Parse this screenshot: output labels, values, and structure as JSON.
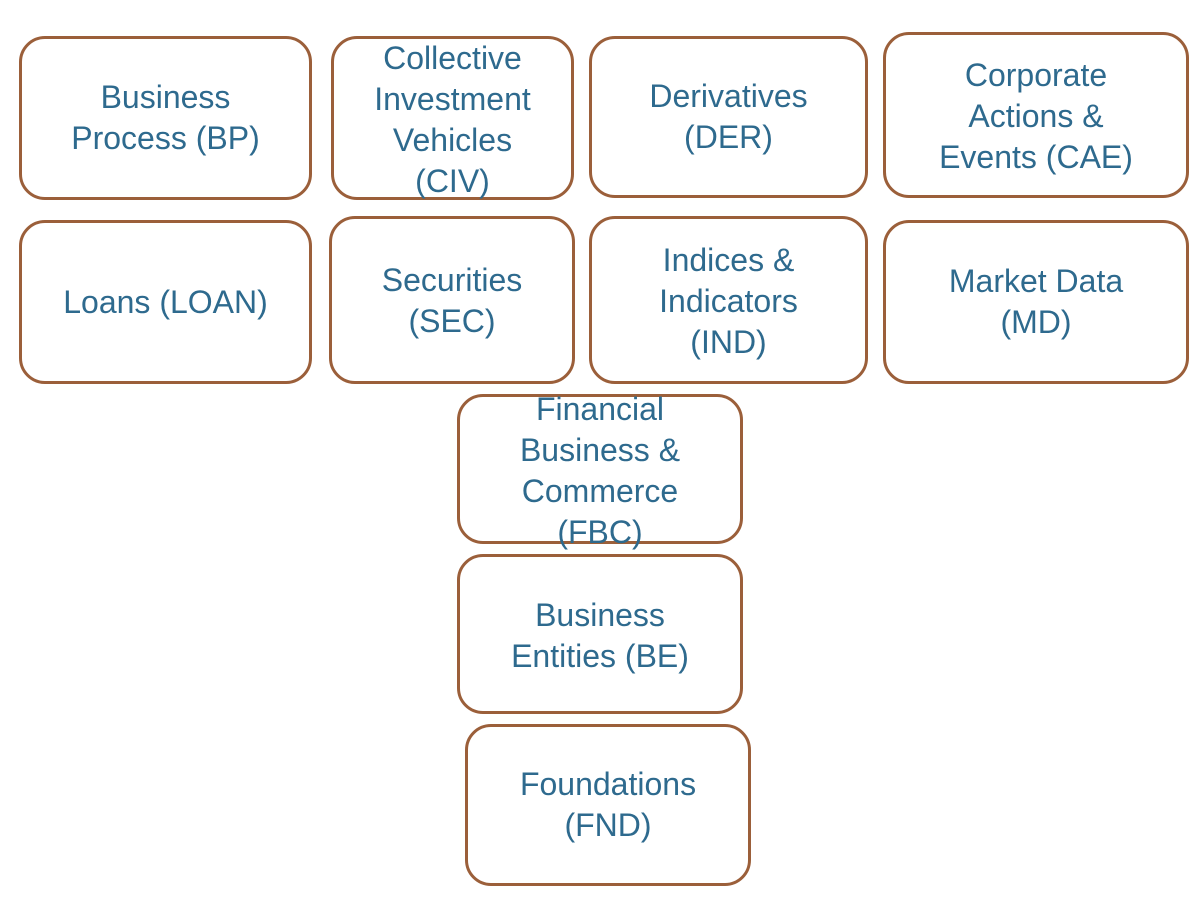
{
  "diagram": {
    "boxes": {
      "bp": {
        "label": "Business\nProcess (BP)"
      },
      "civ": {
        "label": "Collective\nInvestment\nVehicles\n(CIV)"
      },
      "der": {
        "label": "Derivatives\n(DER)"
      },
      "cae": {
        "label": "Corporate\nActions &\nEvents (CAE)"
      },
      "loan": {
        "label": "Loans (LOAN)"
      },
      "sec": {
        "label": "Securities\n(SEC)"
      },
      "ind": {
        "label": "Indices &\nIndicators\n(IND)"
      },
      "md": {
        "label": "Market Data\n(MD)"
      },
      "fbc": {
        "label": "Financial\nBusiness &\nCommerce\n(FBC)"
      },
      "be": {
        "label": "Business\nEntities (BE)"
      },
      "fnd": {
        "label": "Foundations\n(FND)"
      }
    },
    "colors": {
      "border": "#9b5f3a",
      "text": "#2e6a8e",
      "background": "#ffffff"
    }
  }
}
